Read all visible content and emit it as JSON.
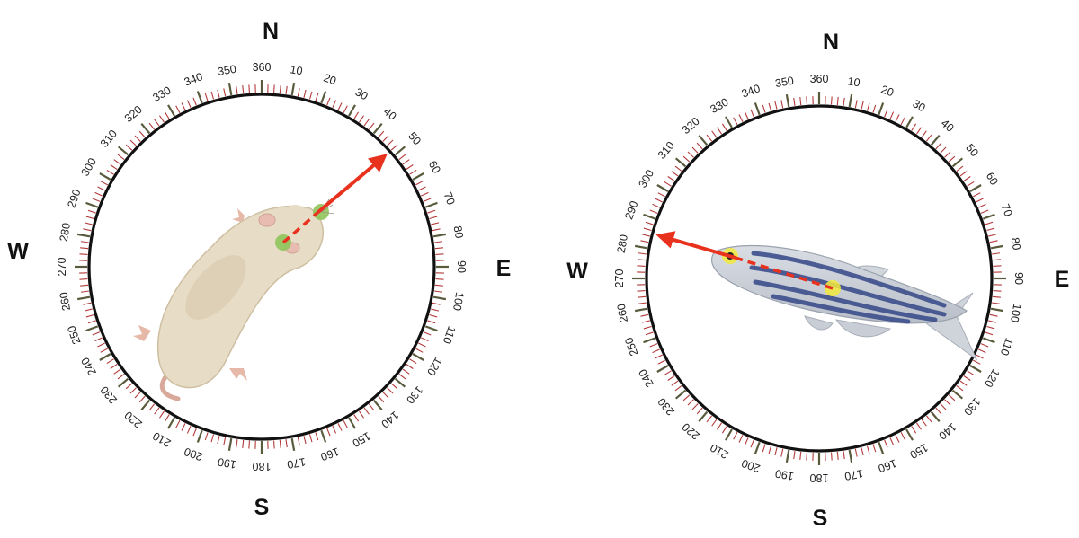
{
  "tick_labels": [
    "360",
    "10",
    "20",
    "30",
    "40",
    "50",
    "60",
    "70",
    "80",
    "90",
    "100",
    "110",
    "120",
    "130",
    "140",
    "150",
    "160",
    "170",
    "180",
    "190",
    "200",
    "210",
    "220",
    "230",
    "240",
    "250",
    "260",
    "270",
    "280",
    "290",
    "300",
    "310",
    "320",
    "330",
    "340",
    "350"
  ],
  "colors": {
    "ring": "#111111",
    "major_tick": "#5a5a3c",
    "minor_tick": "#b23a3a",
    "heading_arrow": "#e8321e",
    "body_line": "#e8321e",
    "mouse_marker": "#8fc45a",
    "fish_marker": "#f2ea3c"
  },
  "compasses": [
    {
      "id": "mouse",
      "subject_icon": "mouse-icon",
      "cardinals": {
        "north": "N",
        "east": "E",
        "south": "S",
        "west": "W"
      },
      "heading_deg": 48
    },
    {
      "id": "zebrafish",
      "subject_icon": "zebrafish-icon",
      "cardinals": {
        "north": "N",
        "east": "E",
        "south": "S",
        "west": "W"
      },
      "heading_deg": 285
    }
  ]
}
